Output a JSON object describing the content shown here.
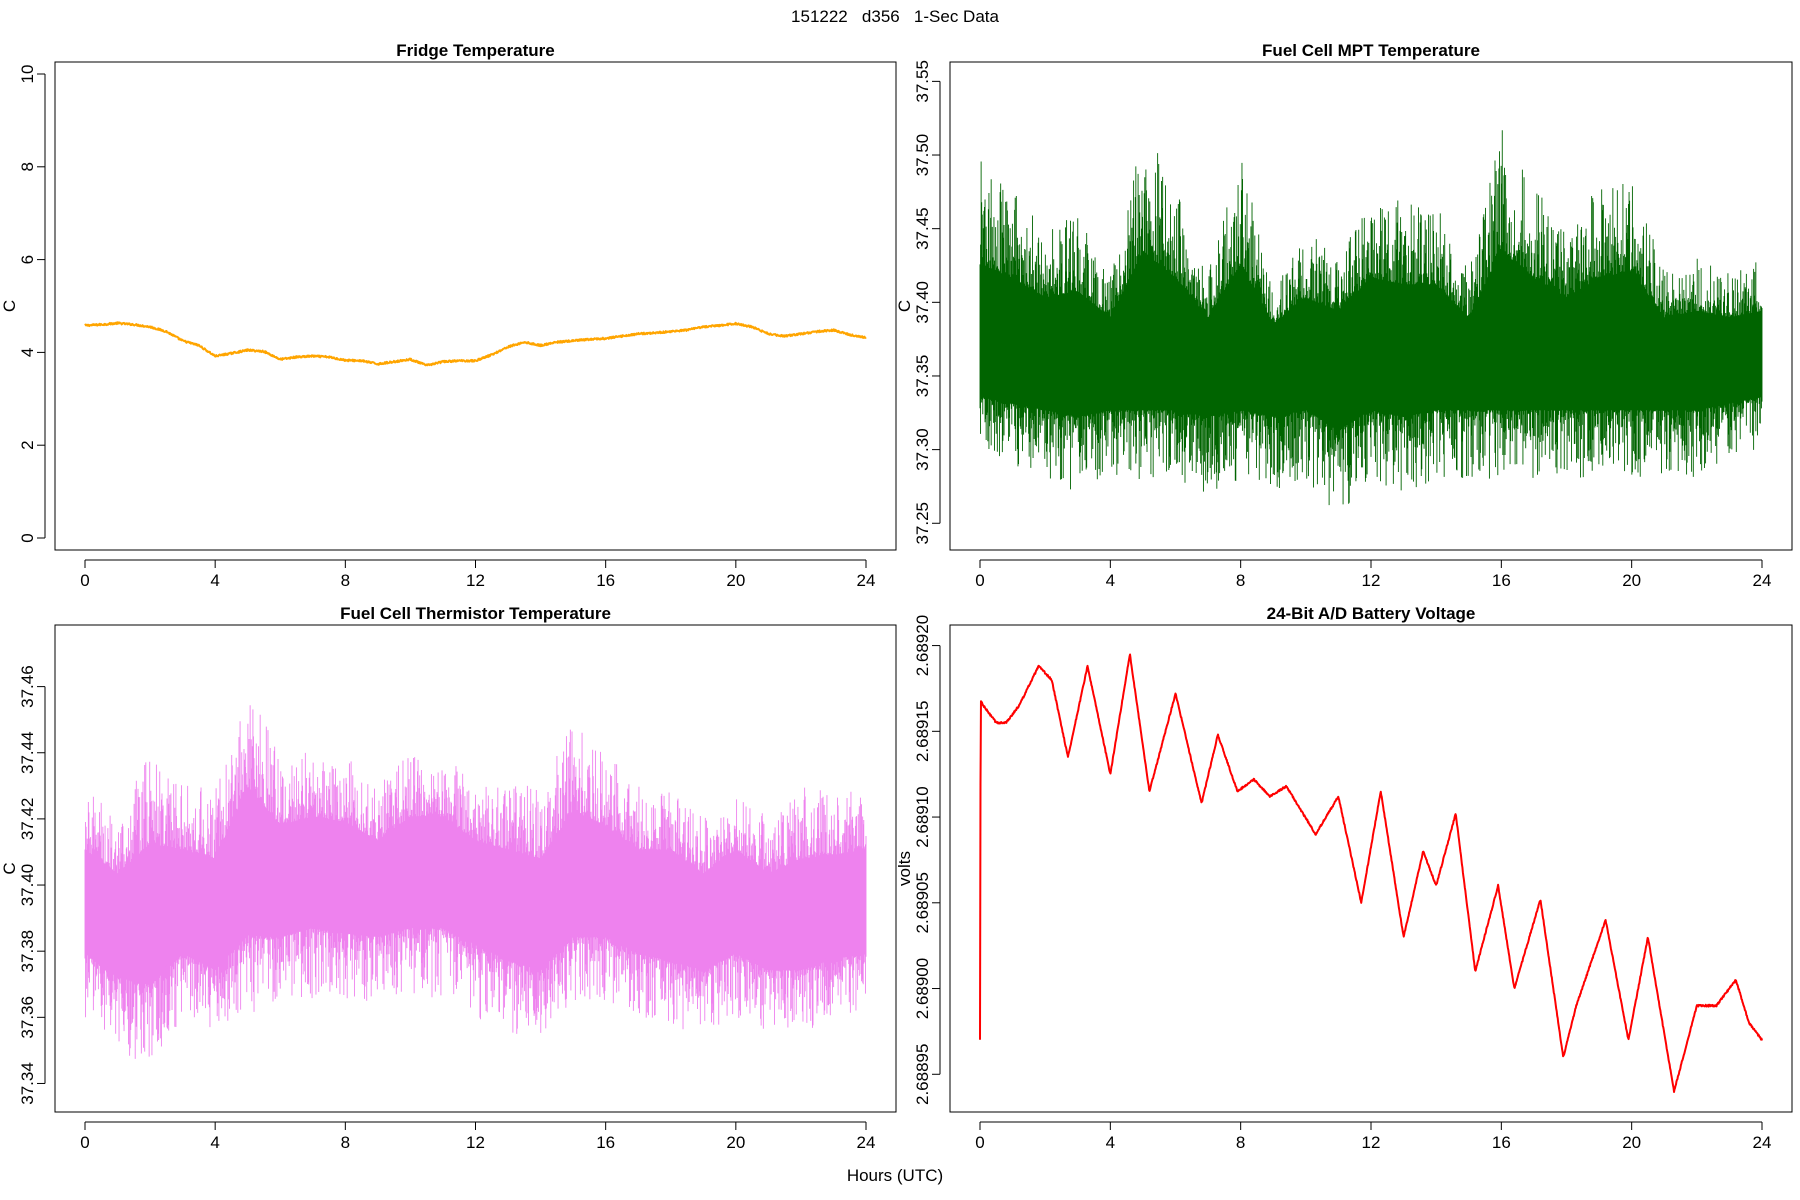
{
  "figure": {
    "title": "151222   d356   1-Sec Data",
    "xlabel": "Hours (UTC)"
  },
  "chart_data": [
    {
      "type": "line",
      "title": "Fridge Temperature",
      "xlabel": "Hours (UTC)",
      "ylabel": "C",
      "color": "#ffa500",
      "xlim": [
        0,
        24
      ],
      "ylim": [
        0,
        10
      ],
      "x_ticks": [
        0,
        4,
        8,
        12,
        16,
        20,
        24
      ],
      "y_ticks": [
        0,
        2,
        4,
        6,
        8,
        10
      ],
      "y_tick_labels": [
        "0",
        "2",
        "4",
        "6",
        "8",
        "10"
      ],
      "render": "line",
      "series": [
        {
          "x": [
            0,
            0.5,
            1.0,
            1.5,
            2.0,
            2.5,
            3.0,
            3.5,
            4.0,
            4.5,
            5.0,
            5.5,
            6.0,
            6.5,
            7.0,
            7.5,
            8.0,
            8.5,
            9.0,
            9.5,
            10.0,
            10.5,
            11.0,
            11.5,
            12.0,
            12.5,
            13.0,
            13.5,
            14.0,
            14.5,
            15.0,
            15.5,
            16.0,
            16.5,
            17.0,
            17.5,
            18.0,
            18.5,
            19.0,
            19.5,
            20.0,
            20.5,
            21.0,
            21.5,
            22.0,
            22.5,
            23.0,
            23.5,
            24.0
          ],
          "y": [
            4.58,
            4.6,
            4.63,
            4.6,
            4.55,
            4.45,
            4.25,
            4.15,
            3.92,
            3.98,
            4.05,
            4.02,
            3.85,
            3.9,
            3.92,
            3.9,
            3.83,
            3.82,
            3.75,
            3.8,
            3.85,
            3.72,
            3.8,
            3.82,
            3.82,
            3.95,
            4.12,
            4.22,
            4.15,
            4.22,
            4.25,
            4.28,
            4.3,
            4.35,
            4.4,
            4.42,
            4.45,
            4.48,
            4.55,
            4.58,
            4.62,
            4.55,
            4.4,
            4.35,
            4.4,
            4.45,
            4.48,
            4.38,
            4.32
          ]
        }
      ]
    },
    {
      "type": "line",
      "title": "Fuel Cell MPT Temperature",
      "xlabel": "Hours (UTC)",
      "ylabel": "C",
      "color": "#006400",
      "xlim": [
        0,
        24
      ],
      "ylim": [
        37.24,
        37.555
      ],
      "x_ticks": [
        0,
        4,
        8,
        12,
        16,
        20,
        24
      ],
      "y_ticks": [
        37.25,
        37.3,
        37.35,
        37.4,
        37.45,
        37.5,
        37.55
      ],
      "y_tick_labels": [
        "37.25",
        "37.30",
        "37.35",
        "37.40",
        "37.45",
        "37.50",
        "37.55"
      ],
      "render": "envelope",
      "series": [
        {
          "x": [
            0,
            1,
            2,
            3,
            4,
            5,
            6,
            7,
            8,
            9,
            10,
            11,
            12,
            13,
            14,
            15,
            16,
            17,
            18,
            19,
            20,
            21,
            22,
            23,
            24
          ],
          "y_mean": [
            37.365,
            37.365,
            37.365,
            37.365,
            37.365,
            37.365,
            37.365,
            37.365,
            37.365,
            37.365,
            37.365,
            37.365,
            37.365,
            37.365,
            37.365,
            37.365,
            37.365,
            37.365,
            37.365,
            37.365,
            37.365,
            37.365,
            37.365,
            37.365,
            37.365
          ],
          "y_max": [
            37.5,
            37.48,
            37.45,
            37.46,
            37.42,
            37.52,
            37.48,
            37.42,
            37.5,
            37.41,
            37.45,
            37.43,
            37.48,
            37.47,
            37.47,
            37.42,
            37.52,
            37.48,
            37.45,
            37.48,
            37.49,
            37.42,
            37.43,
            37.42,
            37.43
          ],
          "y_min": [
            37.3,
            37.29,
            37.28,
            37.27,
            37.28,
            37.28,
            37.28,
            37.27,
            37.28,
            37.27,
            37.28,
            37.25,
            37.28,
            37.27,
            37.28,
            37.28,
            37.28,
            37.28,
            37.28,
            37.28,
            37.28,
            37.28,
            37.28,
            37.29,
            37.3
          ]
        }
      ]
    },
    {
      "type": "line",
      "title": "Fuel Cell Thermistor Temperature",
      "xlabel": "Hours (UTC)",
      "ylabel": "C",
      "color": "#ee82ee",
      "xlim": [
        0,
        24
      ],
      "ylim": [
        37.335,
        37.475
      ],
      "x_ticks": [
        0,
        4,
        8,
        12,
        16,
        20,
        24
      ],
      "y_ticks": [
        37.34,
        37.36,
        37.38,
        37.4,
        37.42,
        37.44,
        37.46
      ],
      "y_tick_labels": [
        "37.34",
        "37.36",
        "37.38",
        "37.40",
        "37.42",
        "37.44",
        "37.46"
      ],
      "render": "envelope",
      "series": [
        {
          "x": [
            0,
            1,
            2,
            3,
            4,
            5,
            6,
            7,
            8,
            9,
            10,
            11,
            12,
            13,
            14,
            15,
            16,
            17,
            18,
            19,
            20,
            21,
            22,
            23,
            24
          ],
          "y_mean": [
            37.395,
            37.39,
            37.39,
            37.395,
            37.39,
            37.405,
            37.4,
            37.405,
            37.402,
            37.4,
            37.405,
            37.405,
            37.4,
            37.395,
            37.39,
            37.4,
            37.4,
            37.395,
            37.395,
            37.39,
            37.395,
            37.39,
            37.39,
            37.392,
            37.395
          ],
          "y_max": [
            37.43,
            37.42,
            37.44,
            37.43,
            37.43,
            37.46,
            37.44,
            37.44,
            37.44,
            37.43,
            37.44,
            37.44,
            37.43,
            37.43,
            37.43,
            37.45,
            37.44,
            37.43,
            37.43,
            37.42,
            37.43,
            37.42,
            37.43,
            37.43,
            37.43
          ],
          "y_min": [
            37.36,
            37.35,
            37.345,
            37.36,
            37.355,
            37.36,
            37.365,
            37.365,
            37.365,
            37.365,
            37.365,
            37.365,
            37.36,
            37.355,
            37.355,
            37.365,
            37.365,
            37.36,
            37.355,
            37.355,
            37.36,
            37.355,
            37.355,
            37.36,
            37.36
          ]
        }
      ]
    },
    {
      "type": "line",
      "title": "24-Bit A/D Battery Voltage",
      "xlabel": "Hours (UTC)",
      "ylabel": "volts",
      "color": "#ff0000",
      "xlim": [
        0,
        24
      ],
      "ylim": [
        2.688935,
        2.689205
      ],
      "x_ticks": [
        0,
        4,
        8,
        12,
        16,
        20,
        24
      ],
      "y_ticks": [
        2.68895,
        2.689,
        2.68905,
        2.6891,
        2.68915,
        2.6892
      ],
      "y_tick_labels": [
        "2.68895",
        "2.68900",
        "2.68905",
        "2.68910",
        "2.68915",
        "2.68920"
      ],
      "render": "line",
      "series": [
        {
          "x": [
            0,
            0.02,
            0.1,
            0.5,
            0.8,
            1.2,
            1.8,
            2.2,
            2.7,
            3.3,
            4.0,
            4.6,
            5.2,
            6.0,
            6.8,
            7.3,
            7.9,
            8.4,
            8.9,
            9.4,
            10.3,
            11.0,
            11.7,
            12.3,
            13.0,
            13.6,
            14.0,
            14.6,
            15.2,
            15.9,
            16.4,
            17.2,
            17.9,
            18.3,
            19.2,
            19.9,
            20.5,
            21.3,
            22.0,
            22.6,
            23.2,
            23.6,
            24.0
          ],
          "y": [
            2.68897,
            2.689168,
            2.689165,
            2.689155,
            2.689155,
            2.689165,
            2.689188,
            2.68918,
            2.689135,
            2.689188,
            2.689125,
            2.689195,
            2.689115,
            2.689172,
            2.689108,
            2.689148,
            2.689115,
            2.689122,
            2.689112,
            2.689118,
            2.68909,
            2.689112,
            2.68905,
            2.689115,
            2.68903,
            2.68908,
            2.68906,
            2.689102,
            2.68901,
            2.68906,
            2.689,
            2.689052,
            2.68896,
            2.68899,
            2.68904,
            2.68897,
            2.68903,
            2.68894,
            2.68899,
            2.68899,
            2.689005,
            2.68898,
            2.68897
          ]
        }
      ]
    }
  ]
}
